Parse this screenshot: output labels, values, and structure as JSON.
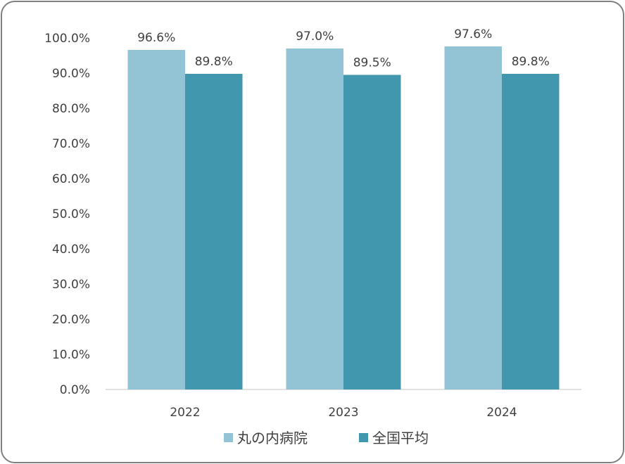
{
  "chart_data": {
    "type": "bar",
    "categories": [
      "2022",
      "2023",
      "2024"
    ],
    "series": [
      {
        "name": "丸の内病院",
        "values": [
          96.6,
          97.0,
          97.6
        ],
        "color": "#93c4d5"
      },
      {
        "name": "全国平均",
        "values": [
          89.8,
          89.5,
          89.8
        ],
        "color": "#4197ae"
      }
    ],
    "data_labels": [
      [
        "96.6%",
        "97.0%",
        "97.6%"
      ],
      [
        "89.8%",
        "89.5%",
        "89.8%"
      ]
    ],
    "yticks": [
      "0.0%",
      "10.0%",
      "20.0%",
      "30.0%",
      "40.0%",
      "50.0%",
      "60.0%",
      "70.0%",
      "80.0%",
      "90.0%",
      "100.0%"
    ],
    "ylim": [
      0,
      100
    ],
    "title": "",
    "xlabel": "",
    "ylabel": "",
    "grid": false,
    "legend": "bottom"
  }
}
